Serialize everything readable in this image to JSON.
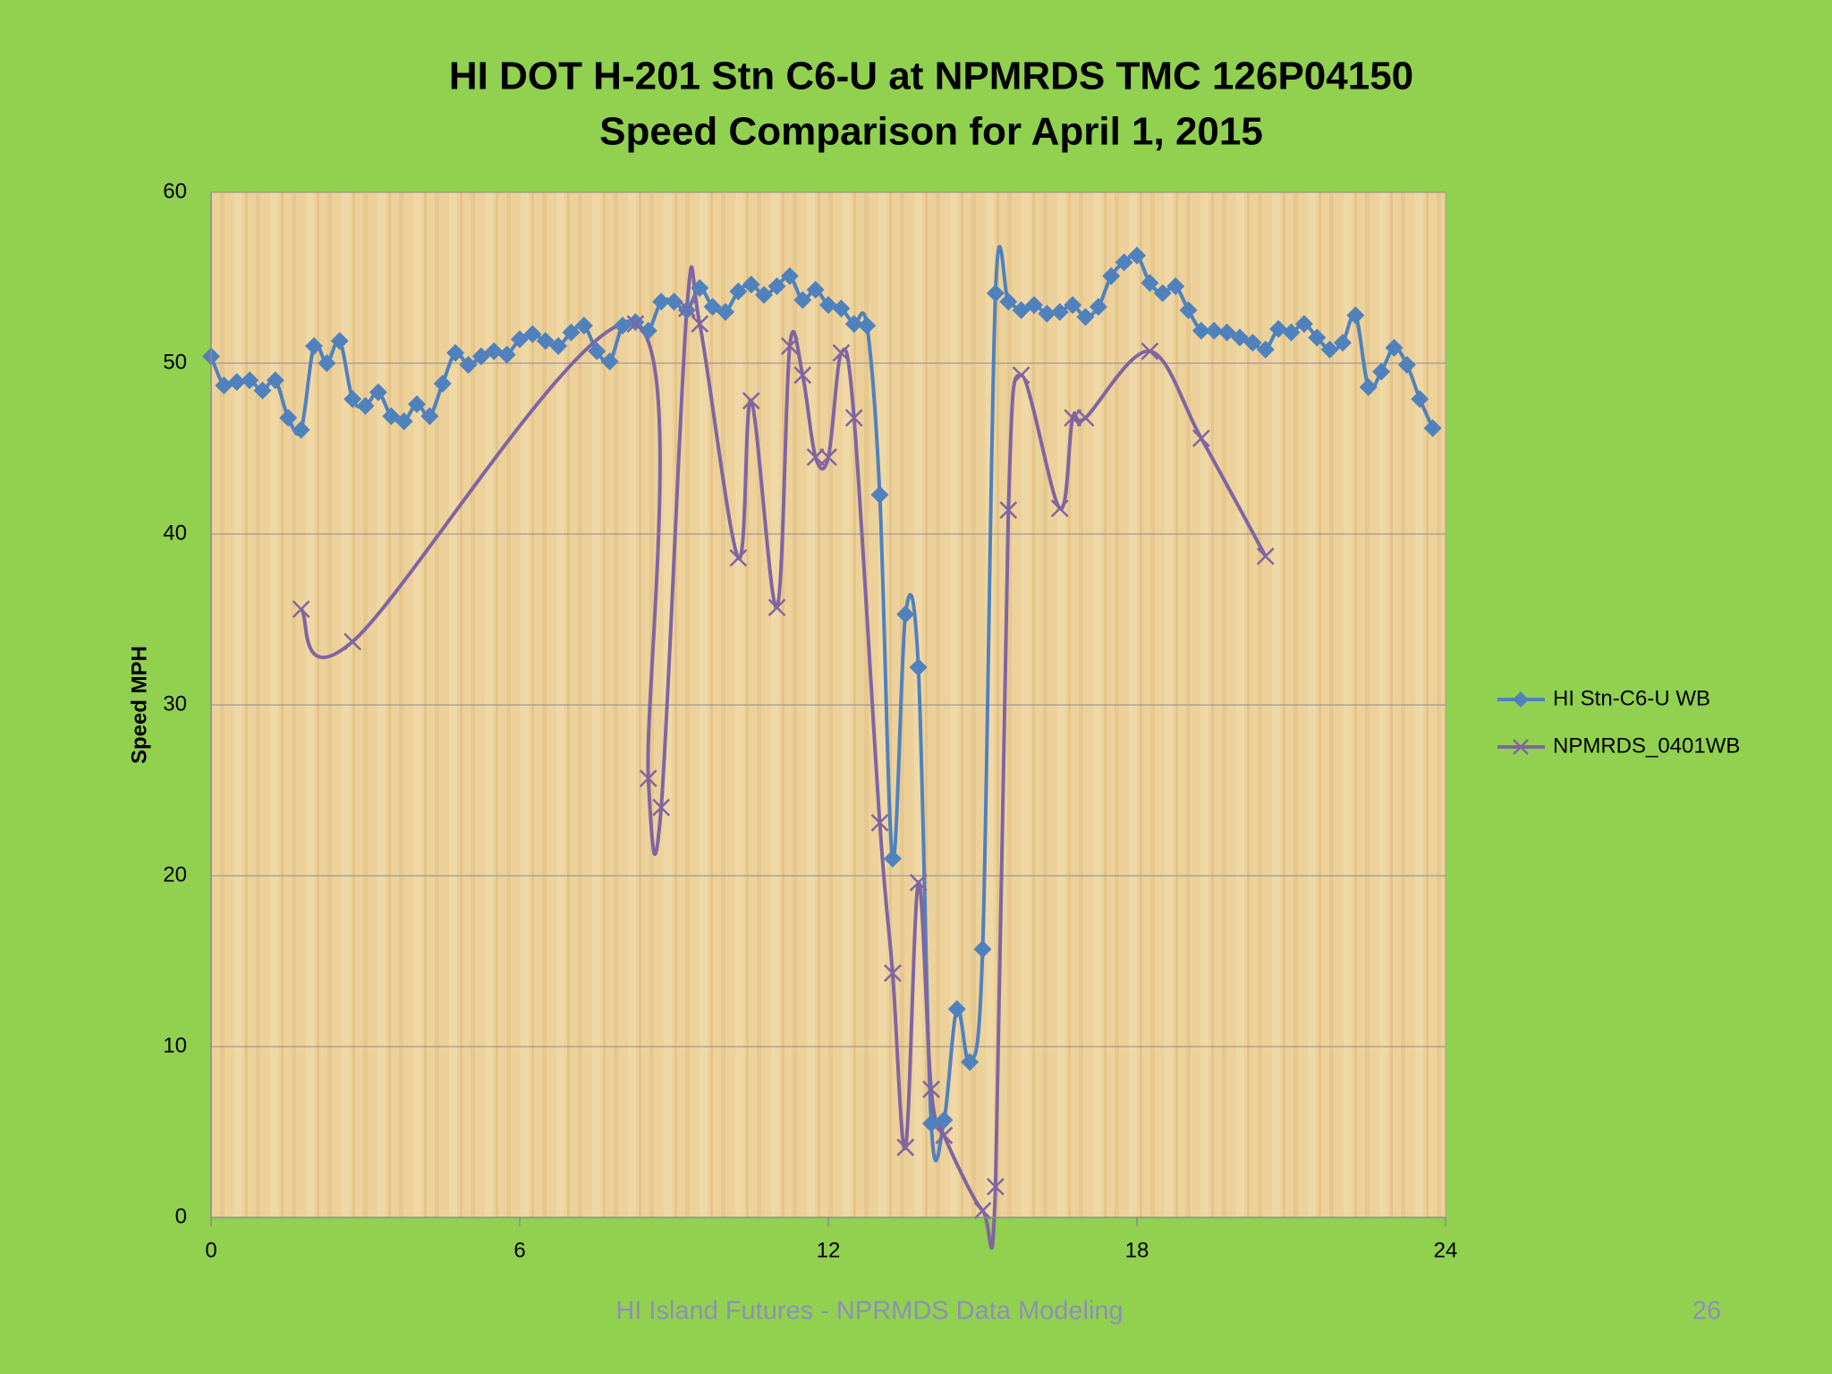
{
  "chart_data": {
    "type": "line",
    "title": "HI DOT H-201 Stn C6-U at NPMRDS TMC 126P04150",
    "subtitle": "Speed Comparison for April 1, 2015",
    "ylabel": "Speed MPH",
    "xlim": [
      0,
      24
    ],
    "xticks": [
      0,
      6,
      12,
      18,
      24
    ],
    "ylim": [
      0,
      60
    ],
    "yticks": [
      0,
      10,
      20,
      30,
      40,
      50,
      60
    ],
    "grid": true,
    "legend": "right",
    "series": [
      {
        "name": "HI Stn-C6-U WB",
        "color": "#4f81bd",
        "marker": "diamond",
        "x": [
          0,
          0.25,
          0.5,
          0.75,
          1,
          1.25,
          1.5,
          1.75,
          2,
          2.25,
          2.5,
          2.75,
          3,
          3.25,
          3.5,
          3.75,
          4,
          4.25,
          4.5,
          4.75,
          5,
          5.25,
          5.5,
          5.75,
          6,
          6.25,
          6.5,
          6.75,
          7,
          7.25,
          7.5,
          7.75,
          8,
          8.25,
          8.5,
          8.75,
          9,
          9.25,
          9.5,
          9.75,
          10,
          10.25,
          10.5,
          10.75,
          11,
          11.25,
          11.5,
          11.75,
          12,
          12.25,
          12.5,
          12.75,
          13,
          13.25,
          13.5,
          13.75,
          14,
          14.25,
          14.5,
          14.75,
          15,
          15.25,
          15.5,
          15.75,
          16,
          16.25,
          16.5,
          16.75,
          17,
          17.25,
          17.5,
          17.75,
          18,
          18.25,
          18.5,
          18.75,
          19,
          19.25,
          19.5,
          19.75,
          20,
          20.25,
          20.5,
          20.75,
          21,
          21.25,
          21.5,
          21.75,
          22,
          22.25,
          22.5,
          22.75,
          23,
          23.25,
          23.5,
          23.75
        ],
        "values": [
          50.4,
          48.7,
          48.9,
          49.0,
          48.4,
          49.0,
          46.8,
          46.1,
          51.0,
          50.0,
          51.3,
          47.9,
          47.5,
          48.3,
          46.9,
          46.6,
          47.6,
          46.9,
          48.8,
          50.6,
          49.9,
          50.4,
          50.7,
          50.5,
          51.4,
          51.7,
          51.3,
          51.0,
          51.8,
          52.2,
          50.7,
          50.1,
          52.2,
          52.4,
          51.9,
          53.6,
          53.6,
          53.1,
          54.4,
          53.3,
          53.0,
          54.2,
          54.6,
          54.0,
          54.5,
          55.1,
          53.7,
          54.3,
          53.4,
          53.2,
          52.3,
          52.2,
          42.3,
          21.0,
          35.3,
          32.2,
          5.5,
          5.7,
          12.2,
          9.1,
          15.7,
          54.1,
          53.6,
          53.1,
          53.4,
          52.9,
          53.0,
          53.4,
          52.7,
          53.3,
          55.1,
          55.9,
          56.3,
          54.7,
          54.1,
          54.5,
          53.1,
          51.9,
          51.9,
          51.8,
          51.5,
          51.2,
          50.8,
          52.0,
          51.8,
          52.3,
          51.5,
          50.8,
          51.2,
          52.8,
          48.6,
          49.5,
          50.9,
          49.9,
          47.9,
          46.2
        ]
      },
      {
        "name": "NPMRDS_0401WB",
        "color": "#8064a2",
        "marker": "x",
        "x": [
          1.75,
          2.75,
          8.25,
          8.5,
          8.75,
          9.25,
          9.5,
          10.25,
          10.5,
          11,
          11.25,
          11.5,
          11.75,
          12,
          12.25,
          12.5,
          13,
          13.25,
          13.5,
          13.75,
          14,
          14.25,
          15,
          15.25,
          15.5,
          15.75,
          16.5,
          16.75,
          17,
          18.25,
          19.25,
          20.5
        ],
        "values": [
          35.6,
          33.7,
          52.3,
          25.7,
          24.0,
          53.2,
          52.3,
          38.6,
          47.8,
          35.7,
          51.0,
          49.3,
          44.5,
          44.5,
          50.6,
          46.8,
          23.1,
          14.3,
          4.1,
          19.6,
          7.5,
          4.8,
          0.4,
          1.8,
          41.4,
          49.3,
          41.5,
          46.8,
          46.8,
          50.7,
          45.6,
          38.7
        ]
      }
    ]
  },
  "footer": {
    "text": "HI Island Futures - NPRMDS Data Modeling",
    "page": "26"
  }
}
